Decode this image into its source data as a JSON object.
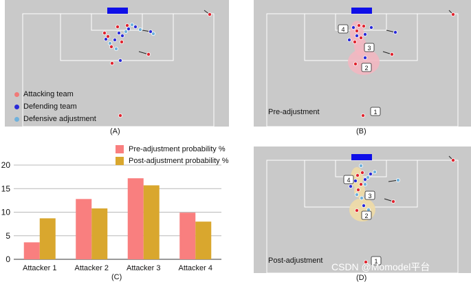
{
  "colors": {
    "pitch": "#c9c9c9",
    "lines": "#ffffff",
    "goal": "#0f0fe8",
    "attacking": "#e0242f",
    "defending": "#2a2ad8",
    "adjusted": "#6fb1dc",
    "pre_bar": "#f97f7f",
    "post_bar": "#d9a72e",
    "pre_zone": "#f4b6c1",
    "post_zone": "#f0dca6"
  },
  "panel_a": {
    "caption": "(A)",
    "legend": {
      "attacking": "Attacking team",
      "defending": "Defending team",
      "adjusted": "Defensive adjustment"
    }
  },
  "panel_b": {
    "caption": "(B)",
    "label": "Pre-adjustment",
    "markers": [
      "1",
      "2",
      "3",
      "4"
    ]
  },
  "panel_d": {
    "caption": "(D)",
    "label": "Post-adjustment",
    "markers": [
      "1",
      "2",
      "3",
      "4"
    ]
  },
  "watermark": "CSDN @Momodel平台",
  "chart_data": {
    "type": "bar",
    "caption": "(C)",
    "categories": [
      "Attacker 1",
      "Attacker 2",
      "Attacker 3",
      "Attacker 4"
    ],
    "series": [
      {
        "name": "Pre-adjustment probability %",
        "values": [
          3.6,
          12.8,
          17.2,
          9.9
        ]
      },
      {
        "name": "Post-adjustment probability %",
        "values": [
          8.7,
          10.8,
          15.7,
          8.0
        ]
      }
    ],
    "y_ticks": [
      0,
      5,
      10,
      15,
      20
    ],
    "ylim": [
      0,
      20
    ],
    "xlabel": "",
    "ylabel": ""
  }
}
